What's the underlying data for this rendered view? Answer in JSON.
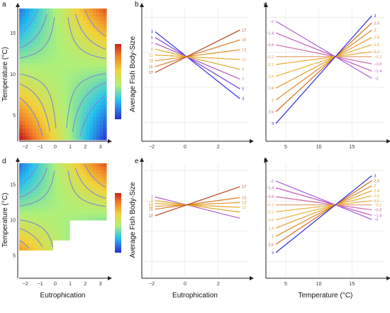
{
  "colors": {
    "heatmap_scale": [
      "#2b2bd6",
      "#26c3ef",
      "#aef07a",
      "#f3d23a",
      "#f07a25",
      "#c8241d"
    ],
    "level_lines": {
      "3": "#2f2ce0",
      "5": "#7a45d6",
      "7": "#b45bc9",
      "9": "#dcab2a",
      "11": "#e8a928",
      "13": "#e49424",
      "15": "#dc7a22",
      "17": "#b8401a",
      "-2": "#a760d6",
      "-1.4": "#c04fc0",
      "-0.8": "#cf6aa9",
      "-0.2": "#e29a60",
      "0.2": "#e8ad3b",
      "0.8": "#e8b034",
      "1.4": "#e39f2c",
      "2": "#dd8a27",
      "2.6": "#d46c22",
      "3.0": "#b8411b"
    },
    "contour": "#7d8ad1",
    "axis": "#222222",
    "grid": "#e7e7e7"
  },
  "chart_data": [
    {
      "panel": "a",
      "type": "heatmap",
      "xlabel": "",
      "ylabel": "Temperature (°C)",
      "xlim": [
        -2.4,
        3.4
      ],
      "ylim": [
        2,
        18
      ],
      "x_ticks": [
        -2,
        -1,
        0,
        1,
        2,
        3
      ],
      "y_ticks": [
        5,
        10,
        15
      ],
      "masked": false,
      "color_scale": "blue-cyan-green-yellow-orange-red"
    },
    {
      "panel": "b",
      "type": "line",
      "xlabel": "",
      "ylabel": "Average Fish Body-Size",
      "x_ticks": [
        -2,
        0,
        2
      ],
      "xlim": [
        -2.6,
        3.8
      ],
      "ylim": [
        3,
        18
      ],
      "pivot": [
        0.1,
        12.5
      ],
      "x_range": [
        -1.8,
        3.3
      ],
      "series": [
        {
          "level": "3",
          "slope": -1.5
        },
        {
          "level": "5",
          "slope": -1.15
        },
        {
          "level": "7",
          "slope": -0.8
        },
        {
          "level": "9",
          "slope": -0.45
        },
        {
          "level": "11",
          "slope": -0.1
        },
        {
          "level": "13",
          "slope": 0.25
        },
        {
          "level": "15",
          "slope": 0.6
        },
        {
          "level": "17",
          "slope": 0.95
        }
      ],
      "left_labels": [
        "3",
        "5",
        "7",
        "9",
        "11",
        "13",
        "15",
        "17"
      ],
      "right_labels": [
        "17",
        "15",
        "13",
        "11",
        "9",
        "7",
        "5",
        "3"
      ]
    },
    {
      "panel": "c",
      "type": "line",
      "xlabel": "",
      "ylabel": "",
      "x_ticks": [
        5,
        10,
        15
      ],
      "xlim": [
        2,
        20
      ],
      "ylim": [
        3,
        18
      ],
      "pivot": [
        12.5,
        12.5
      ],
      "x_range": [
        3.5,
        18
      ],
      "series": [
        {
          "level": "-2",
          "slope": -0.45
        },
        {
          "level": "-1.4",
          "slope": -0.3
        },
        {
          "level": "-0.8",
          "slope": -0.15
        },
        {
          "level": "-0.2",
          "slope": 0.0
        },
        {
          "level": "0.2",
          "slope": 0.1
        },
        {
          "level": "0.8",
          "slope": 0.25
        },
        {
          "level": "1.4",
          "slope": 0.4
        },
        {
          "level": "2",
          "slope": 0.55
        },
        {
          "level": "2.6",
          "slope": 0.7
        },
        {
          "level": "3",
          "slope": 0.85
        }
      ],
      "left_labels": [
        "-2",
        "-1.4",
        "-0.8",
        "-0.2",
        "0.2",
        "0.8",
        "1.4",
        "2",
        "2.6",
        "3"
      ],
      "right_labels": [
        "3",
        "2.6",
        "2",
        "1.4",
        "0.8",
        "0.2",
        "-0.2",
        "-0.8",
        "-1.4",
        "-2"
      ]
    },
    {
      "panel": "d",
      "type": "heatmap",
      "xlabel": "Eutrophication",
      "ylabel": "Temperature (°C)",
      "xlim": [
        -2.4,
        3.4
      ],
      "ylim": [
        2,
        18
      ],
      "x_ticks": [
        -2,
        -1,
        0,
        1,
        2,
        3
      ],
      "y_ticks": [
        5,
        10,
        15
      ],
      "masked": true,
      "color_scale": "blue-cyan-green-yellow-orange-red"
    },
    {
      "panel": "e",
      "type": "line",
      "xlabel": "Eutrophication",
      "ylabel": "Average Fish Body-Size",
      "x_ticks": [
        -2,
        0,
        2
      ],
      "xlim": [
        -2.6,
        3.8
      ],
      "ylim": [
        3,
        18
      ],
      "pivot": [
        0.1,
        12.5
      ],
      "x_range": [
        -1.8,
        3.3
      ],
      "series": [
        {
          "level": "7",
          "slope": -0.55
        },
        {
          "level": "9",
          "slope": -0.3
        },
        {
          "level": "11",
          "slope": -0.1
        },
        {
          "level": "13",
          "slope": 0.1
        },
        {
          "level": "15",
          "slope": 0.3
        },
        {
          "level": "17",
          "slope": 0.75
        }
      ],
      "left_labels": [
        "7",
        "9",
        "11",
        "13",
        "15",
        "17"
      ],
      "right_labels": [
        "17",
        "15",
        "13",
        "11"
      ]
    },
    {
      "panel": "f",
      "type": "line",
      "xlabel": "Temperature (°C)",
      "ylabel": "",
      "x_ticks": [
        5,
        10,
        15
      ],
      "xlim": [
        2,
        20
      ],
      "ylim": [
        3,
        18
      ],
      "pivot": [
        12.5,
        12.5
      ],
      "x_range": [
        3.5,
        18
      ],
      "series": [
        {
          "level": "-2",
          "slope": -0.35
        },
        {
          "level": "-1.4",
          "slope": -0.25
        },
        {
          "level": "-0.8",
          "slope": -0.12
        },
        {
          "level": "-0.2",
          "slope": 0.0
        },
        {
          "level": "0.2",
          "slope": 0.1
        },
        {
          "level": "0.8",
          "slope": 0.22
        },
        {
          "level": "1.4",
          "slope": 0.34
        },
        {
          "level": "2",
          "slope": 0.46
        },
        {
          "level": "2.6",
          "slope": 0.58
        },
        {
          "level": "3",
          "slope": 0.7
        }
      ],
      "left_labels": [
        "-2",
        "-1.4",
        "-0.8",
        "-0.2",
        "0.2",
        "0.8",
        "1.4",
        "2",
        "2.6",
        "3"
      ],
      "right_labels": [
        "3",
        "2.6",
        "2",
        "1.4",
        "0.8",
        "0.2",
        "-0.2",
        "-0.8",
        "-1.4",
        "-2"
      ]
    }
  ],
  "labels": {
    "panel_letters": [
      "a",
      "b",
      "c",
      "d",
      "e",
      "f"
    ]
  }
}
